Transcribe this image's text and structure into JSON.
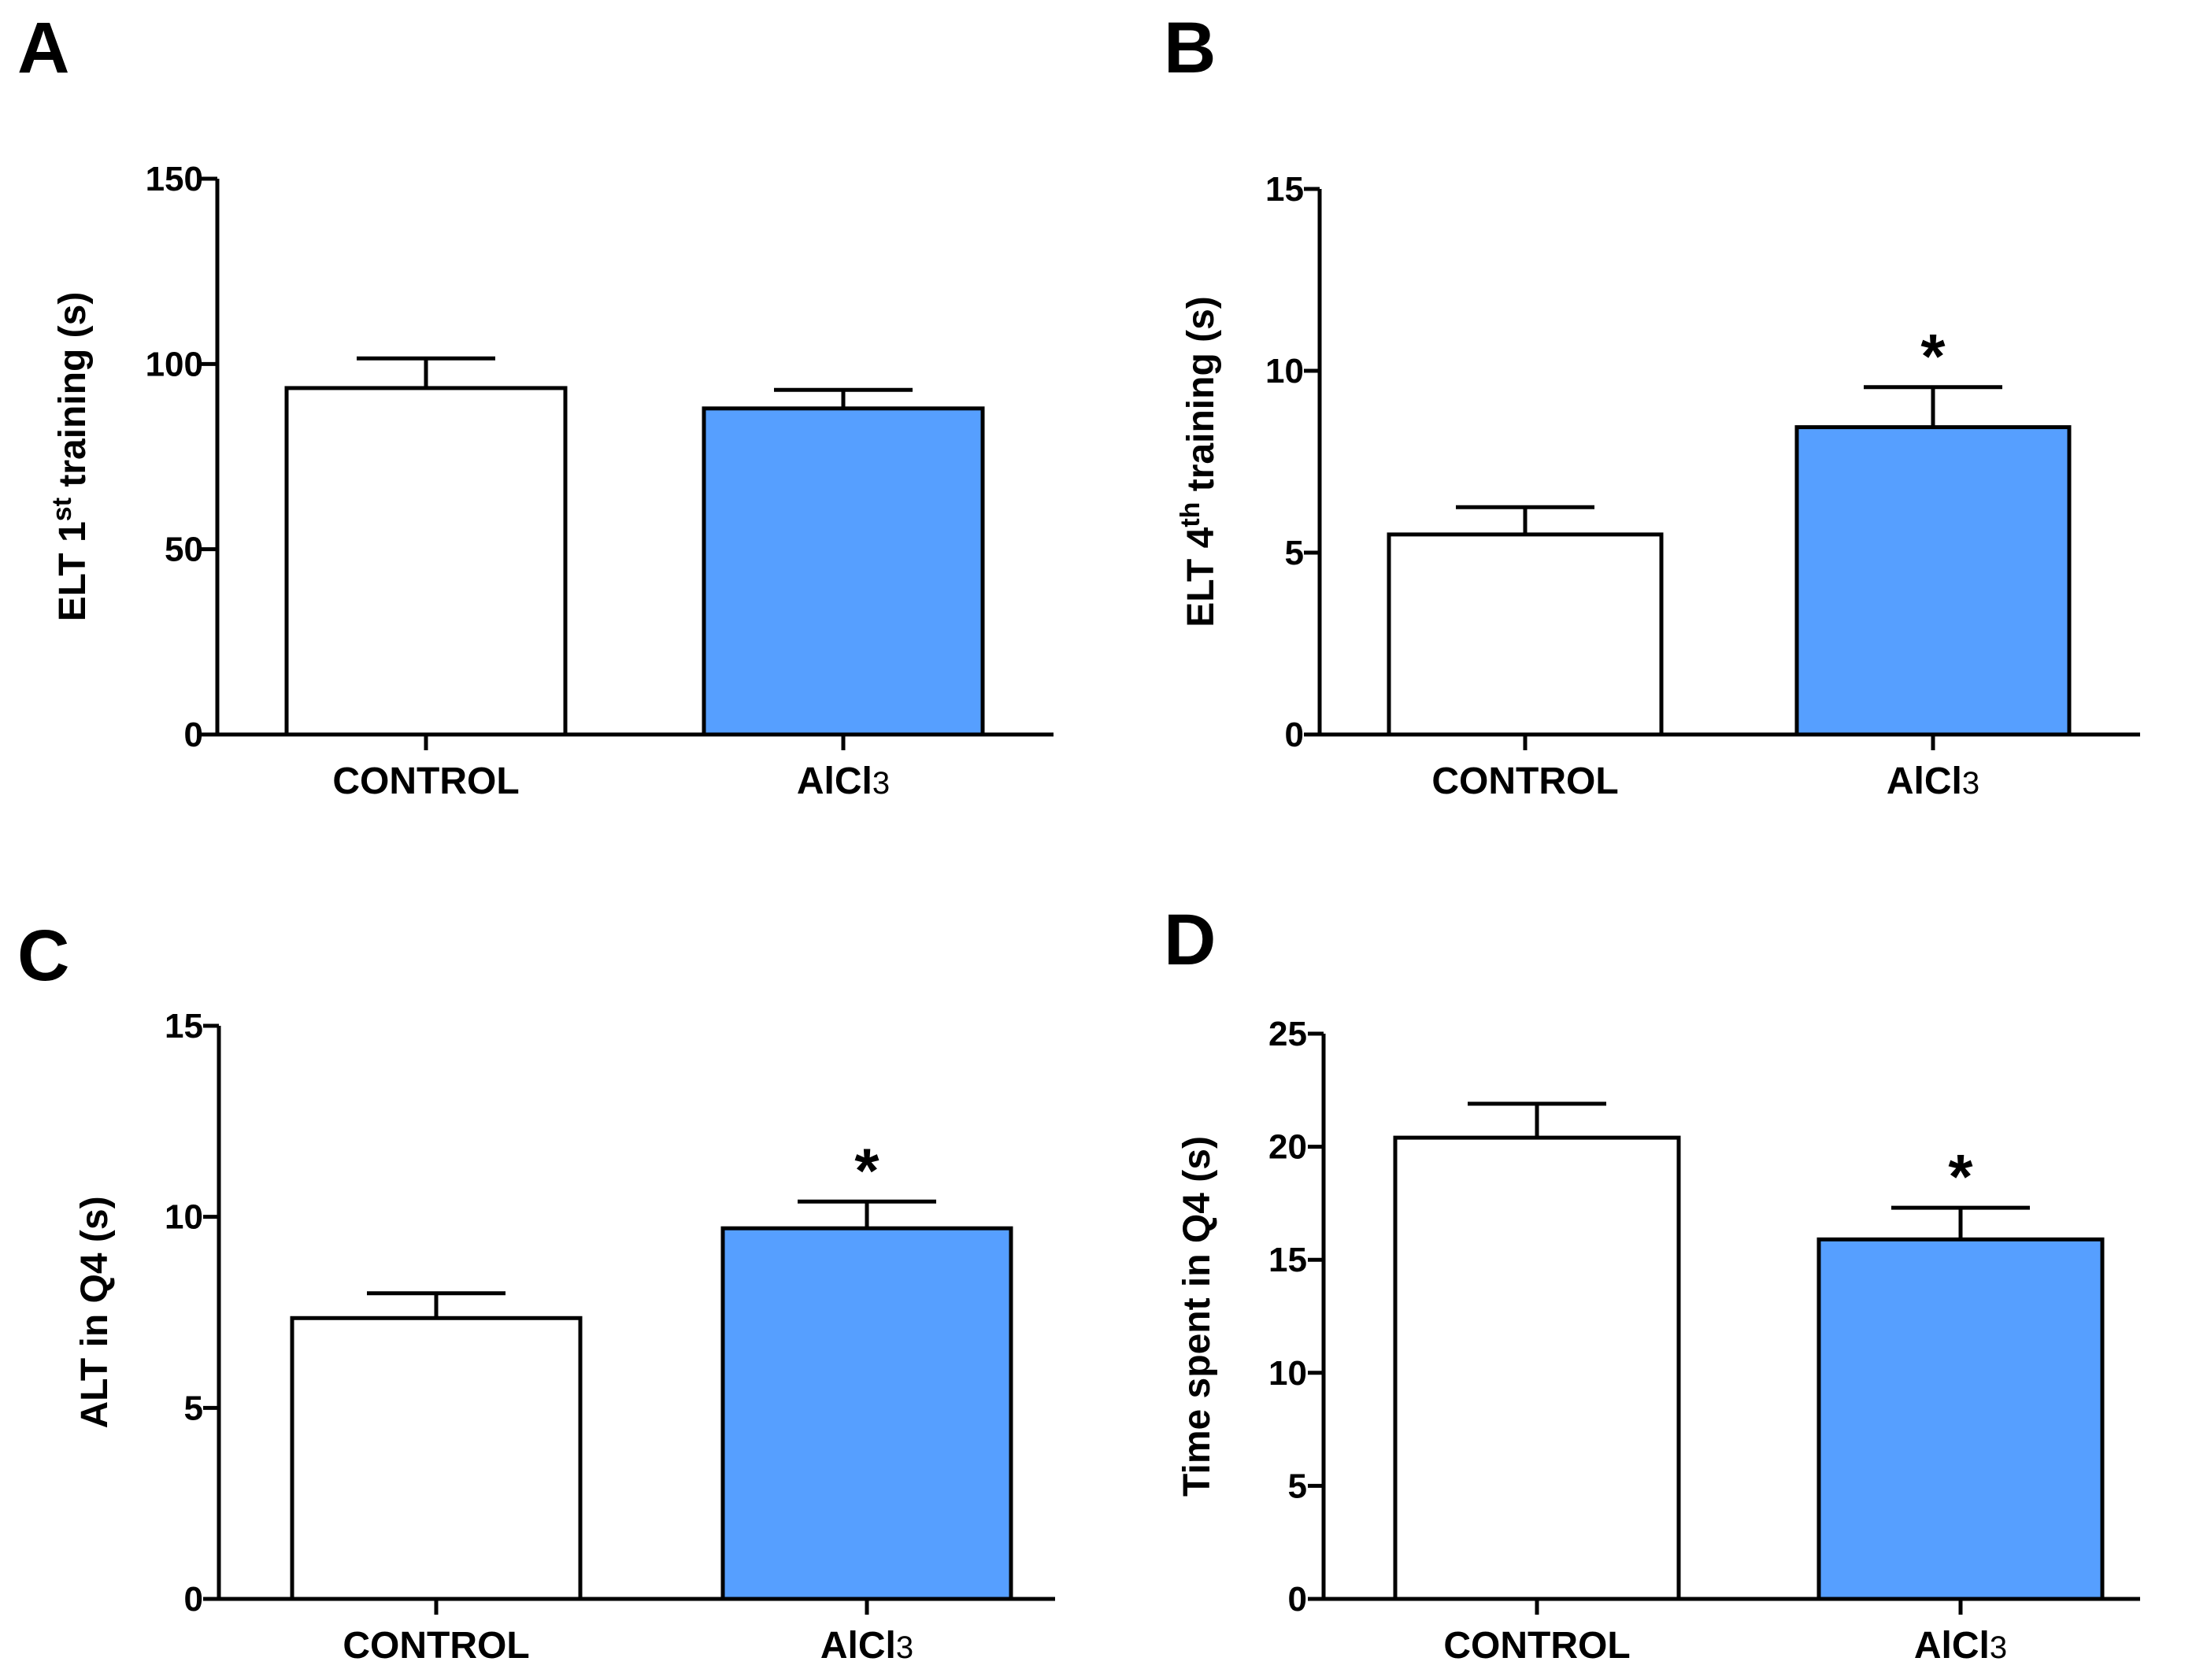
{
  "colors": {
    "control": "#ffffff",
    "treatment": "#569fff",
    "stroke": "#000000"
  },
  "chart_data": [
    {
      "panel": "A",
      "type": "bar",
      "ylabel": "ELT 1st training (s)",
      "ylabel_parts": [
        "ELT 1",
        "st",
        " training (s)"
      ],
      "ylim": [
        0,
        150
      ],
      "ticks": [
        0,
        50,
        100,
        150
      ],
      "tick_labels": [
        "0",
        "50",
        "100",
        "150"
      ],
      "categories": [
        "CONTROL",
        "AlCl3"
      ],
      "category_parts": [
        [
          "CONTROL",
          ""
        ],
        [
          "AlCl",
          "3"
        ]
      ],
      "values": [
        93.5,
        88
      ],
      "errors": [
        8,
        5
      ],
      "significance": [
        "",
        ""
      ]
    },
    {
      "panel": "B",
      "type": "bar",
      "ylabel": "ELT 4th training (s)",
      "ylabel_parts": [
        "ELT 4",
        "th",
        " training (s)"
      ],
      "ylim": [
        0,
        15
      ],
      "ticks": [
        0,
        5,
        10,
        15
      ],
      "tick_labels": [
        "0",
        "5",
        "10",
        "15"
      ],
      "categories": [
        "CONTROL",
        "AlCl3"
      ],
      "category_parts": [
        [
          "CONTROL",
          ""
        ],
        [
          "AlCl",
          "3"
        ]
      ],
      "values": [
        5.5,
        8.45
      ],
      "errors": [
        0.75,
        1.1
      ],
      "significance": [
        "",
        "*"
      ]
    },
    {
      "panel": "C",
      "type": "bar",
      "ylabel": "ALT in Q4 (s)",
      "ylabel_parts": [
        "ALT in Q4 (s)",
        "",
        ""
      ],
      "ylim": [
        0,
        15
      ],
      "ticks": [
        0,
        5,
        10,
        15
      ],
      "tick_labels": [
        "0",
        "5",
        "10",
        "15"
      ],
      "categories": [
        "CONTROL",
        "AlCl3"
      ],
      "category_parts": [
        [
          "CONTROL",
          ""
        ],
        [
          "AlCl",
          "3"
        ]
      ],
      "values": [
        7.35,
        9.7
      ],
      "errors": [
        0.65,
        0.7
      ],
      "significance": [
        "",
        "*"
      ]
    },
    {
      "panel": "D",
      "type": "bar",
      "ylabel": "Time spent in Q4 (s)",
      "ylabel_parts": [
        "Time spent in Q4 (s)",
        "",
        ""
      ],
      "ylim": [
        0,
        25
      ],
      "ticks": [
        0,
        5,
        10,
        15,
        20,
        25
      ],
      "tick_labels": [
        "0",
        "5",
        "10",
        "15",
        "20",
        "25"
      ],
      "categories": [
        "CONTROL",
        "AlCl3"
      ],
      "category_parts": [
        [
          "CONTROL",
          ""
        ],
        [
          "AlCl",
          "3"
        ]
      ],
      "values": [
        20.4,
        15.9
      ],
      "errors": [
        1.5,
        1.4
      ],
      "significance": [
        "",
        "*"
      ]
    }
  ]
}
